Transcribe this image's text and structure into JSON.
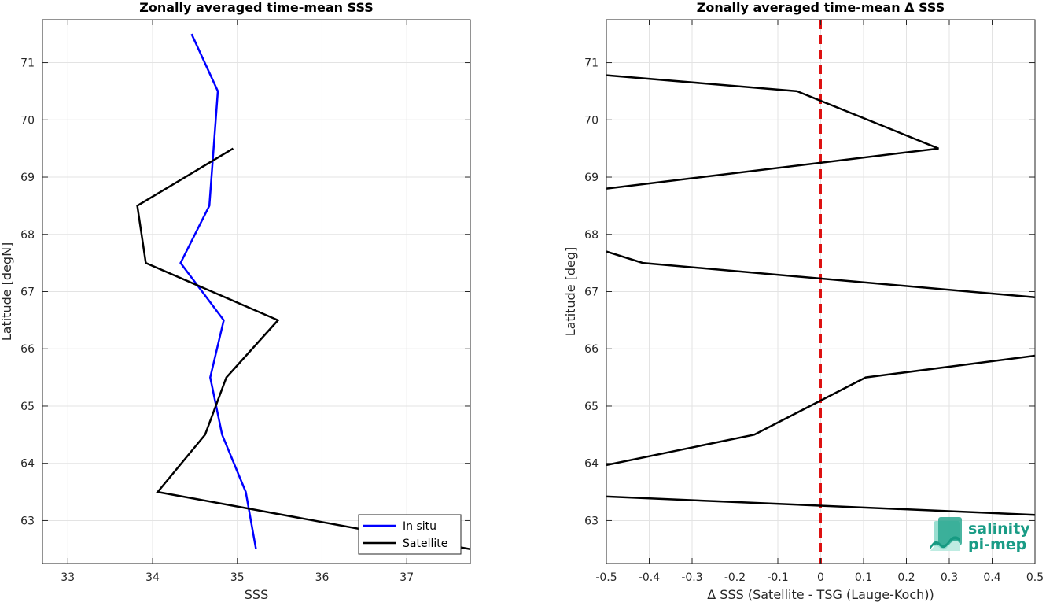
{
  "chart_data": [
    {
      "type": "line",
      "title": "Zonally averaged time-mean SSS",
      "xlabel": "SSS",
      "ylabel": "Latitude [degN]",
      "xlim": [
        32.7,
        37.75
      ],
      "ylim": [
        62.25,
        71.75
      ],
      "xticks": [
        33,
        34,
        35,
        36,
        37
      ],
      "yticks": [
        63,
        64,
        65,
        66,
        67,
        68,
        69,
        70,
        71
      ],
      "grid": true,
      "legend": "bottom-right",
      "series": [
        {
          "name": "In situ",
          "color": "#0000ff",
          "x": [
            34.46,
            34.77,
            34.67,
            34.33,
            34.84,
            34.68,
            34.82,
            35.1,
            35.22
          ],
          "y": [
            71.5,
            70.5,
            68.5,
            67.5,
            66.5,
            65.5,
            64.5,
            63.5,
            62.5
          ]
        },
        {
          "name": "Satellite",
          "color": "#000000",
          "x": [
            34.95,
            33.82,
            33.92,
            35.48,
            34.87,
            34.62,
            34.06,
            37.75
          ],
          "y": [
            69.5,
            68.5,
            67.5,
            66.5,
            65.5,
            64.5,
            63.5,
            62.5
          ]
        }
      ]
    },
    {
      "type": "line",
      "title": "Zonally averaged time-mean Δ SSS",
      "xlabel": "Δ SSS (Satellite - TSG (Lauge-Koch))",
      "ylabel": "Latitude [deg]",
      "xlim": [
        -0.5,
        0.5
      ],
      "ylim": [
        62.25,
        71.75
      ],
      "xticks": [
        -0.5,
        -0.4,
        -0.3,
        -0.2,
        -0.1,
        0,
        0.1,
        0.2,
        0.3,
        0.4,
        0.5
      ],
      "xtick_labels": [
        "-0.5",
        "-0.4",
        "-0.3",
        "-0.2",
        "-0.1",
        "0",
        "0.1",
        "0.2",
        "0.3",
        "0.4",
        "0.5"
      ],
      "yticks": [
        63,
        64,
        65,
        66,
        67,
        68,
        69,
        70,
        71
      ],
      "grid": true,
      "reference_line": {
        "x": 0,
        "color": "#dd1111",
        "style": "dashed"
      },
      "series": [
        {
          "color": "#000000",
          "x": [
            -0.5,
            -0.055,
            0.275,
            -0.5
          ],
          "y": [
            70.78,
            70.5,
            69.5,
            68.8
          ]
        },
        {
          "color": "#000000",
          "x": [
            -0.5,
            -0.415,
            0.5
          ],
          "y": [
            67.7,
            67.5,
            66.9
          ]
        },
        {
          "color": "#000000",
          "x": [
            -0.5,
            -0.155,
            0.105,
            0.5
          ],
          "y": [
            63.97,
            64.5,
            65.5,
            65.88
          ]
        },
        {
          "color": "#000000",
          "x": [
            -0.5,
            0.5
          ],
          "y": [
            63.42,
            63.1
          ]
        }
      ]
    }
  ],
  "logo": {
    "line1": "salinity",
    "line2": "pi-mep",
    "color": "#1a9c86"
  }
}
